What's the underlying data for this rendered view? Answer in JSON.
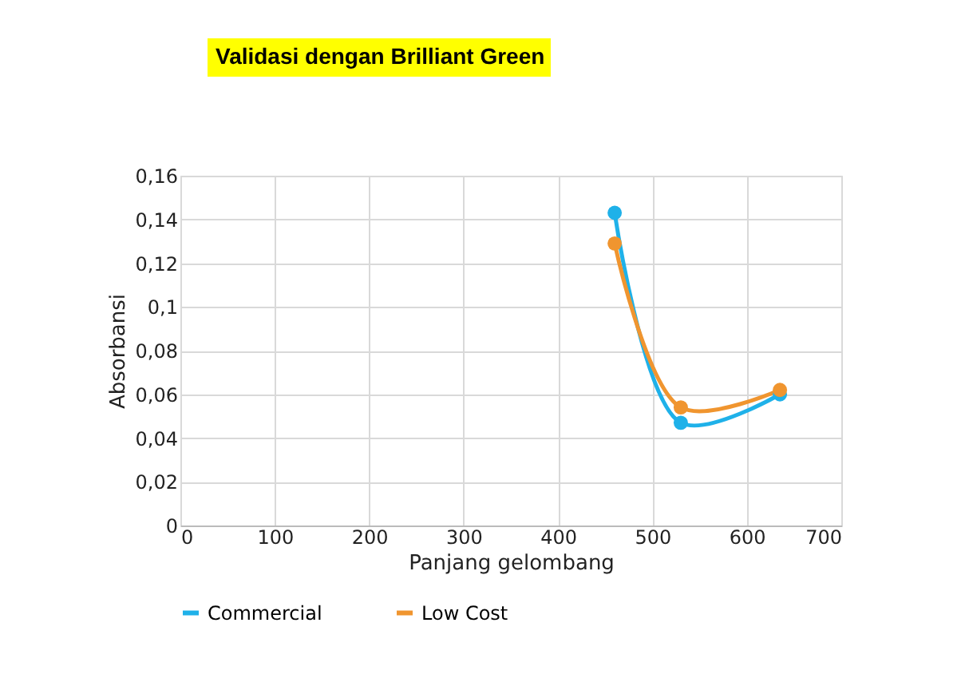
{
  "chart_data": {
    "type": "line",
    "title": "Validasi dengan Brilliant Green",
    "xlabel": "Panjang gelombang",
    "ylabel": "Absorbansi",
    "x": [
      460,
      530,
      635
    ],
    "series": [
      {
        "name": "Commercial",
        "color": "#1fb1e9",
        "values": [
          0.143,
          0.047,
          0.06
        ]
      },
      {
        "name": "Low Cost",
        "color": "#f0952f",
        "values": [
          0.129,
          0.054,
          0.062
        ]
      }
    ],
    "xlim": [
      0,
      700
    ],
    "xticks": [
      0,
      100,
      200,
      300,
      400,
      500,
      600,
      700
    ],
    "ylim": [
      0,
      0.16
    ],
    "yticks": [
      {
        "value": 0,
        "label": "0"
      },
      {
        "value": 0.02,
        "label": "0,02"
      },
      {
        "value": 0.04,
        "label": "0,04"
      },
      {
        "value": 0.06,
        "label": "0,06"
      },
      {
        "value": 0.08,
        "label": "0,08"
      },
      {
        "value": 0.1,
        "label": "0,1"
      },
      {
        "value": 0.12,
        "label": "0,12"
      },
      {
        "value": 0.14,
        "label": "0,14"
      },
      {
        "value": 0.16,
        "label": "0,16"
      }
    ],
    "grid": true,
    "legend": "bottom",
    "marker": "circle",
    "line_style": "solid"
  }
}
